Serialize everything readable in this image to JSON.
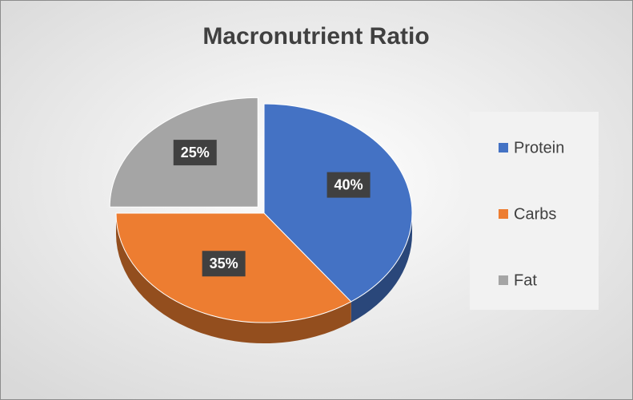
{
  "chart_data": {
    "type": "pie",
    "title": "Macronutrient Ratio",
    "categories": [
      "Protein",
      "Carbs",
      "Fat"
    ],
    "values": [
      40,
      35,
      25
    ],
    "value_labels": [
      "40%",
      "35%",
      "25%"
    ],
    "colors": [
      "#4472c4",
      "#ed7d31",
      "#a5a5a5"
    ],
    "legend": "right"
  }
}
